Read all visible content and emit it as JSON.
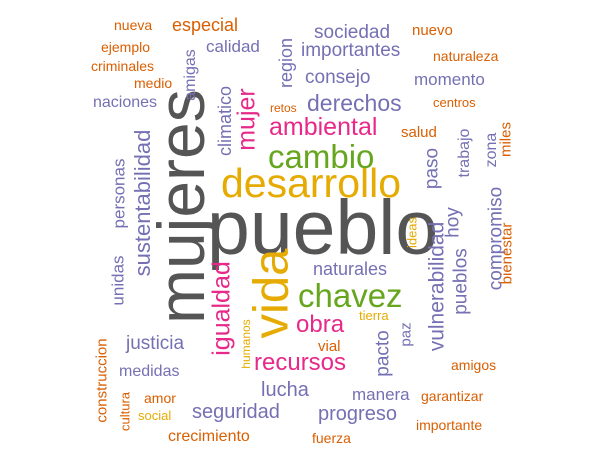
{
  "palette": {
    "gray": "#555555",
    "purple": "#7570b3",
    "orange": "#d95f02",
    "mustard": "#e6ab02",
    "green": "#66a61e",
    "pink": "#e7298a",
    "brown": "#a6761d"
  },
  "words": {
    "pueblo": "pueblo",
    "mujeres": "mujeres",
    "desarrollo": "desarrollo",
    "vida": "vida",
    "cambio": "cambio",
    "chavez": "chavez",
    "ambiental": "ambiental",
    "igualdad": "igualdad",
    "mujer": "mujer",
    "derechos": "derechos",
    "recursos": "recursos",
    "obra": "obra",
    "sustentabilidad": "sustentabilidad",
    "vulnerabilidad": "vulnerabilidad",
    "naturales": "naturales",
    "consejo": "consejo",
    "seguridad": "seguridad",
    "progreso": "progreso",
    "importantes": "importantes",
    "sociedad": "sociedad",
    "lucha": "lucha",
    "justicia": "justicia",
    "climatico": "climatico",
    "region": "region",
    "pueblos": "pueblos",
    "compromiso": "compromiso",
    "pacto": "pacto",
    "hoy": "hoy",
    "paso": "paso",
    "momento": "momento",
    "naciones": "naciones",
    "especial": "especial",
    "calidad": "calidad",
    "personas": "personas",
    "unidas": "unidas",
    "trabajo": "trabajo",
    "crecimiento": "crecimiento",
    "medidas": "medidas",
    "manera": "manera",
    "nuevo": "nuevo",
    "nueva": "nueva",
    "ejemplo": "ejemplo",
    "criminales": "criminales",
    "medio": "medio",
    "amigas": "amigas",
    "naturaleza": "naturaleza",
    "centros": "centros",
    "retos": "retos",
    "salud": "salud",
    "zona": "zona",
    "miles": "miles",
    "ideas": "ideas",
    "bienestar": "bienestar",
    "tierra": "tierra",
    "paz": "paz",
    "vial": "vial",
    "humanos": "humanos",
    "amigos": "amigos",
    "construccion": "construccion",
    "amor": "amor",
    "garantizar": "garantizar",
    "cultura": "cultura",
    "social": "social",
    "importante": "importante",
    "fuerza": "fuerza"
  }
}
